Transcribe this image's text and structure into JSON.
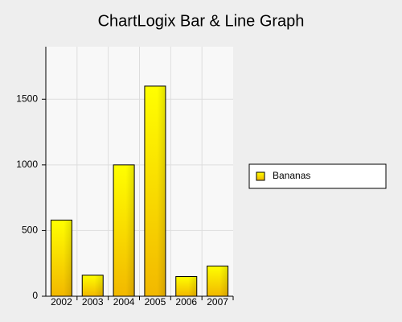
{
  "chart_data": {
    "type": "bar",
    "title": "ChartLogix Bar & Line Graph",
    "categories": [
      "2002",
      "2003",
      "2004",
      "2005",
      "2006",
      "2007"
    ],
    "series": [
      {
        "name": "Bananas",
        "color": "#ffff00",
        "values": [
          580,
          160,
          1000,
          1600,
          150,
          230
        ]
      }
    ],
    "ylim": [
      0,
      1900
    ],
    "yticks": [
      0,
      500,
      1000,
      1500
    ],
    "grid": true,
    "legend": "right"
  }
}
